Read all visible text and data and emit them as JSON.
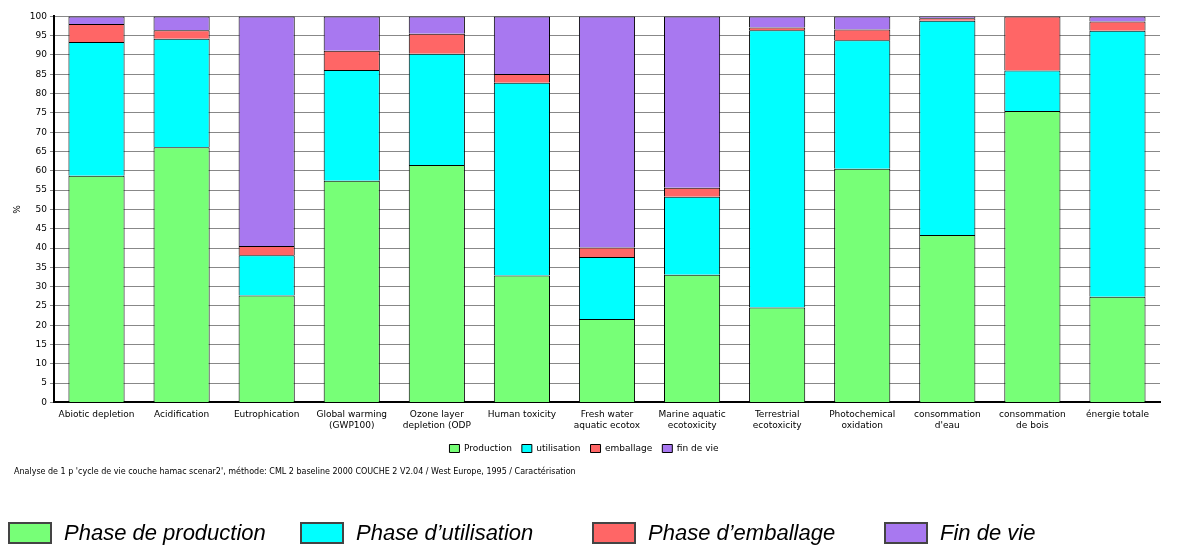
{
  "chart_data": {
    "type": "bar",
    "stacked": true,
    "ylabel": "%",
    "categories": [
      "Abiotic depletion",
      "Acidification",
      "Eutrophication",
      "Global warming\n(GWP100)",
      "Ozone layer\ndepletion (ODP",
      "Human toxicity",
      "Fresh water\naquatic ecotox",
      "Marine aquatic\necotoxicity",
      "Terrestrial\necotoxicity",
      "Photochemical\noxidation",
      "consommation\nd'eau",
      "consommation\nde bois",
      "énergie totale"
    ],
    "series": [
      {
        "name": "Production",
        "color": "#77ff77",
        "values": [
          58.7,
          66.1,
          27.7,
          57.4,
          61.5,
          32.9,
          21.6,
          33.1,
          24.6,
          60.5,
          43.4,
          75.5,
          27.4
        ]
      },
      {
        "name": "utilisation",
        "color": "#00ffff",
        "values": [
          34.7,
          28.1,
          10.4,
          28.7,
          28.8,
          49.9,
          16.1,
          20.2,
          71.8,
          33.3,
          55.5,
          10.5,
          68.9
        ]
      },
      {
        "name": "emballage",
        "color": "#ff6666",
        "values": [
          4.6,
          2.2,
          2.4,
          5.0,
          5.2,
          2.3,
          2.4,
          2.3,
          0.7,
          2.8,
          0.6,
          14.0,
          2.4
        ]
      },
      {
        "name": "fin de vie",
        "color": "#a878f0",
        "values": [
          2.0,
          3.6,
          59.5,
          8.9,
          4.5,
          14.9,
          59.9,
          44.4,
          2.9,
          3.4,
          0.5,
          0.0,
          1.3
        ]
      }
    ],
    "ylim": [
      0,
      100
    ],
    "yticks": [
      0,
      5,
      10,
      15,
      20,
      25,
      30,
      35,
      40,
      45,
      50,
      55,
      60,
      65,
      70,
      75,
      80,
      85,
      90,
      95,
      100
    ],
    "grid": "y",
    "legend": "bottom",
    "annotations": [
      "Analyse de 1 p 'cycle de vie couche hamac scenar2', méthode: CML 2 baseline 2000 COUCHE 2 V2.04 /  West Europe, 1995 / Caractérisation",
      "Phase de production",
      "Phase d’utilisation",
      "Phase d’emballage",
      "Fin de vie"
    ]
  }
}
